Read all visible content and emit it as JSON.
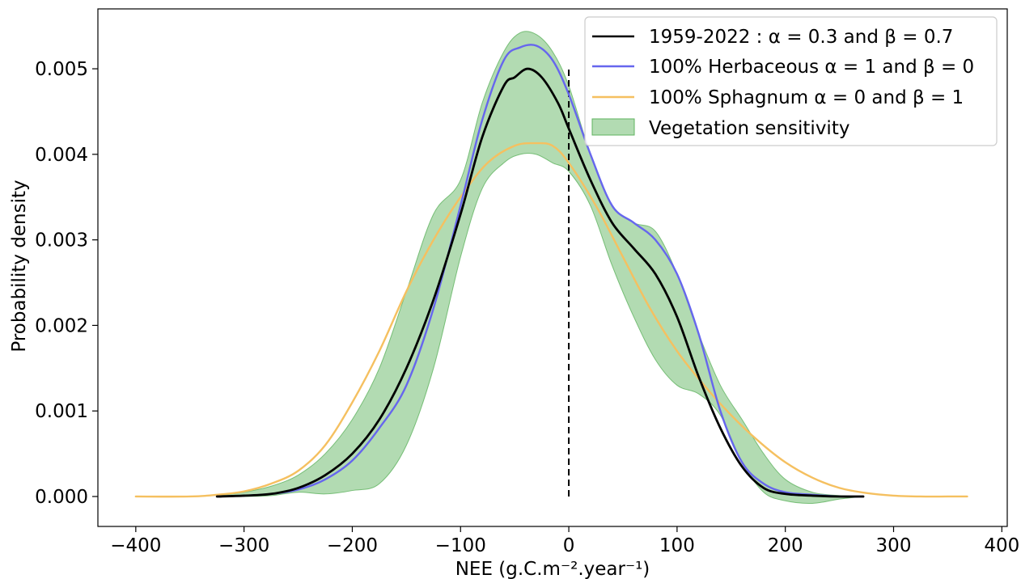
{
  "chart_data": {
    "type": "line",
    "xlabel": "NEE (g.C.m⁻².year⁻¹)",
    "ylabel": "Probability density",
    "xlim": [
      -435,
      405
    ],
    "ylim": [
      -0.00035,
      0.0057
    ],
    "x_ticks": [
      "−400",
      "−300",
      "−200",
      "−100",
      "0",
      "100",
      "200",
      "300",
      "400"
    ],
    "x_tick_values": [
      -400,
      -300,
      -200,
      -100,
      0,
      100,
      200,
      300,
      400
    ],
    "y_ticks": [
      "0.000",
      "0.001",
      "0.002",
      "0.003",
      "0.004",
      "0.005"
    ],
    "y_tick_values": [
      0,
      0.001,
      0.002,
      0.003,
      0.004,
      0.005
    ],
    "grid": false,
    "legend_position": "top-right",
    "vline": {
      "x": 0,
      "y_range": [
        0,
        0.005
      ],
      "style": "dashed",
      "color": "#000000"
    },
    "series": [
      {
        "name": "1959-2022 : α = 0.3 and  β = 0.7",
        "color": "#000000",
        "x": [
          -325,
          -300,
          -275,
          -250,
          -225,
          -200,
          -175,
          -150,
          -125,
          -100,
          -80,
          -60,
          -50,
          -38,
          -25,
          -10,
          0,
          20,
          40,
          60,
          80,
          100,
          120,
          140,
          160,
          180,
          200,
          225,
          250,
          272
        ],
        "y": [
          0,
          1e-05,
          3e-05,
          0.0001,
          0.00025,
          0.0005,
          0.0009,
          0.0015,
          0.0023,
          0.0033,
          0.0042,
          0.0048,
          0.0049,
          0.005,
          0.0049,
          0.0046,
          0.0043,
          0.0037,
          0.0032,
          0.0029,
          0.0026,
          0.0021,
          0.0014,
          0.0008,
          0.00035,
          0.0001,
          3e-05,
          1e-05,
          0,
          0
        ]
      },
      {
        "name": "100% Herbaceous α = 1 and β = 0",
        "color": "#6666ee",
        "x": [
          -325,
          -300,
          -275,
          -250,
          -225,
          -200,
          -175,
          -150,
          -125,
          -100,
          -80,
          -60,
          -45,
          -30,
          -15,
          0,
          20,
          40,
          60,
          80,
          100,
          120,
          140,
          160,
          180,
          200,
          225,
          250,
          272
        ],
        "y": [
          0,
          1e-05,
          3e-05,
          8e-05,
          0.0002,
          0.00042,
          0.0008,
          0.0013,
          0.0022,
          0.0034,
          0.0044,
          0.0051,
          0.00525,
          0.00527,
          0.0051,
          0.0047,
          0.004,
          0.0034,
          0.0032,
          0.003,
          0.0026,
          0.0019,
          0.001,
          0.0004,
          0.00015,
          5e-05,
          2e-05,
          0,
          0
        ]
      },
      {
        "name": "100% Sphagnum α = 0 and β = 1",
        "color": "#f5c060",
        "x": [
          -400,
          -350,
          -325,
          -300,
          -275,
          -250,
          -225,
          -200,
          -175,
          -150,
          -125,
          -100,
          -75,
          -50,
          -30,
          -15,
          0,
          25,
          50,
          75,
          100,
          125,
          150,
          175,
          200,
          225,
          250,
          275,
          300,
          325,
          350,
          368
        ],
        "y": [
          0,
          0,
          2e-05,
          6e-05,
          0.00015,
          0.0003,
          0.0006,
          0.0011,
          0.0017,
          0.0024,
          0.003,
          0.0035,
          0.0039,
          0.0041,
          0.00413,
          0.0041,
          0.0039,
          0.0034,
          0.0028,
          0.0022,
          0.0017,
          0.0013,
          0.00095,
          0.00065,
          0.0004,
          0.00022,
          0.0001,
          4e-05,
          1e-05,
          0,
          0,
          0
        ]
      }
    ],
    "band": {
      "name": "Vegetation sensitivity",
      "color": "#5fb35f",
      "opacity": 0.48,
      "x": [
        -325,
        -300,
        -275,
        -250,
        -225,
        -200,
        -175,
        -150,
        -125,
        -100,
        -80,
        -60,
        -45,
        -30,
        -15,
        0,
        20,
        40,
        60,
        80,
        100,
        120,
        140,
        160,
        180,
        200,
        225,
        250,
        272
      ],
      "upper": [
        1e-05,
        5e-05,
        0.00012,
        0.00025,
        0.0005,
        0.0009,
        0.0015,
        0.0024,
        0.0033,
        0.0037,
        0.0046,
        0.0052,
        0.00542,
        0.0054,
        0.0052,
        0.0048,
        0.004,
        0.0034,
        0.0032,
        0.0031,
        0.0026,
        0.0019,
        0.0013,
        0.0009,
        0.0005,
        0.0002,
        5e-05,
        1e-05,
        0
      ],
      "lower": [
        0,
        0,
        1e-05,
        5e-05,
        3e-05,
        7e-05,
        0.00015,
        0.0006,
        0.0015,
        0.0028,
        0.0036,
        0.0039,
        0.004,
        0.004,
        0.0039,
        0.0038,
        0.0034,
        0.0027,
        0.0021,
        0.0016,
        0.0013,
        0.0012,
        0.00095,
        0.0004,
        5e-05,
        -5e-05,
        -8e-05,
        -3e-05,
        0
      ]
    }
  }
}
